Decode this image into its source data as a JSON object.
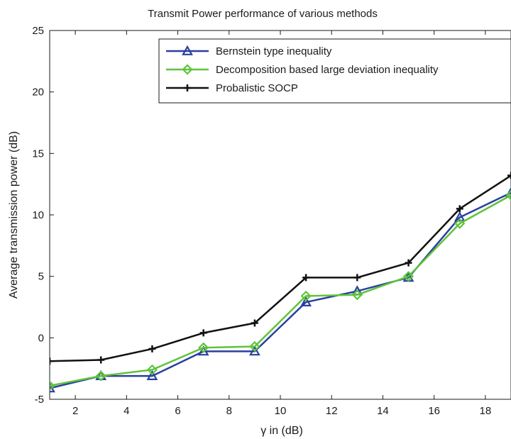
{
  "chart_data": {
    "type": "line",
    "title": "Transmit Power performance of various methods",
    "xlabel": "γ in (dB)",
    "ylabel": "Average transmission power (dB)",
    "xlim": [
      1,
      19
    ],
    "ylim": [
      -5,
      25
    ],
    "xticks": [
      2,
      4,
      6,
      8,
      10,
      12,
      14,
      16,
      18
    ],
    "yticks": [
      -5,
      0,
      5,
      10,
      15,
      20,
      25
    ],
    "grid": false,
    "legend_position": "top-right",
    "x": [
      1,
      3,
      5,
      7,
      9,
      11,
      13,
      15,
      17,
      19
    ],
    "series": [
      {
        "name": "Bernstein type inequality",
        "color": "#2a3f9e",
        "marker": "triangle",
        "values": [
          -4.1,
          -3.1,
          -3.1,
          -1.1,
          -1.1,
          2.9,
          3.8,
          4.9,
          9.8,
          11.8
        ]
      },
      {
        "name": "Decomposition based large deviation inequality",
        "color": "#5ec43a",
        "marker": "diamond",
        "values": [
          -3.9,
          -3.1,
          -2.6,
          -0.8,
          -0.7,
          3.4,
          3.5,
          5.0,
          9.3,
          11.6
        ]
      },
      {
        "name": "Probalistic SOCP",
        "color": "#111111",
        "marker": "plus",
        "values": [
          -1.9,
          -1.8,
          -0.9,
          0.4,
          1.2,
          4.9,
          4.9,
          6.1,
          10.5,
          13.2
        ]
      }
    ]
  }
}
